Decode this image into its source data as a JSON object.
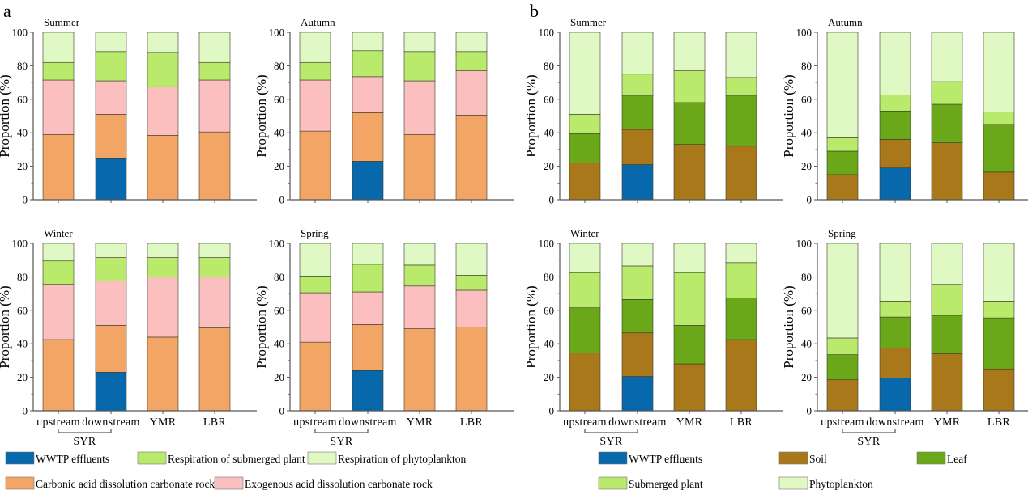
{
  "figure": {
    "panel_labels": [
      "a",
      "b"
    ],
    "group_label": "SYR"
  },
  "legends": {
    "a": [
      {
        "label": "WWTP effluents",
        "color": "#0868ac"
      },
      {
        "label": "Respiration of submerged plant",
        "color": "#b9ea6b"
      },
      {
        "label": "Respiration of phytoplankton",
        "color": "#e0f8c4"
      },
      {
        "label": "Carbonic acid dissolution carbonate rock",
        "color": "#f2a565"
      },
      {
        "label": "Exogenous acid dissolution carbonate rock",
        "color": "#fbbfc0"
      }
    ],
    "b": [
      {
        "label": "WWTP effluents",
        "color": "#0868ac"
      },
      {
        "label": "Soil",
        "color": "#a8781a"
      },
      {
        "label": "Leaf",
        "color": "#6aa81a"
      },
      {
        "label": "Submerged plant",
        "color": "#b9ea6b"
      },
      {
        "label": "Phytoplankton",
        "color": "#e0f8c4"
      }
    ]
  },
  "chart_data": [
    {
      "panel": "a",
      "title": "Summer",
      "type": "bar",
      "stacked": true,
      "ylabel": "Proportion (%)",
      "ylim": [
        0,
        100
      ],
      "yticks": [
        "0",
        "20",
        "40",
        "60",
        "80",
        "100"
      ],
      "categories": [
        "upstream",
        "downstream",
        "YMR",
        "LBR"
      ],
      "series": [
        {
          "name": "WWTP effluents",
          "color": "#0868ac",
          "values": [
            0,
            24.5,
            0,
            0
          ]
        },
        {
          "name": "Carbonic acid dissolution carbonate rock",
          "color": "#f2a565",
          "values": [
            39,
            26.5,
            38.5,
            40.5
          ]
        },
        {
          "name": "Exogenous acid dissolution carbonate rock",
          "color": "#fbbfc0",
          "values": [
            32.5,
            20,
            29,
            31
          ]
        },
        {
          "name": "Respiration of submerged plant",
          "color": "#b9ea6b",
          "values": [
            10.5,
            17.5,
            20.5,
            10.5
          ]
        },
        {
          "name": "Respiration of phytoplankton",
          "color": "#e0f8c4",
          "values": [
            18,
            11.5,
            12,
            18
          ]
        }
      ]
    },
    {
      "panel": "a",
      "title": "Autumn",
      "type": "bar",
      "stacked": true,
      "ylabel": "Proportion (%)",
      "ylim": [
        0,
        100
      ],
      "yticks": [
        "0",
        "20",
        "40",
        "60",
        "80",
        "100"
      ],
      "categories": [
        "upstream",
        "downstream",
        "YMR",
        "LBR"
      ],
      "series": [
        {
          "name": "WWTP effluents",
          "color": "#0868ac",
          "values": [
            0,
            23,
            0,
            0
          ]
        },
        {
          "name": "Carbonic acid dissolution carbonate rock",
          "color": "#f2a565",
          "values": [
            41,
            29,
            39,
            50.5
          ]
        },
        {
          "name": "Exogenous acid dissolution carbonate rock",
          "color": "#fbbfc0",
          "values": [
            30.5,
            21.5,
            32,
            26.5
          ]
        },
        {
          "name": "Respiration of submerged plant",
          "color": "#b9ea6b",
          "values": [
            10.5,
            15.5,
            17.5,
            11.5
          ]
        },
        {
          "name": "Respiration of phytoplankton",
          "color": "#e0f8c4",
          "values": [
            18,
            11,
            11.5,
            11.5
          ]
        }
      ]
    },
    {
      "panel": "a",
      "title": "Winter",
      "type": "bar",
      "stacked": true,
      "ylabel": "Proportion (%)",
      "ylim": [
        0,
        100
      ],
      "yticks": [
        "0",
        "20",
        "40",
        "60",
        "80",
        "100"
      ],
      "categories": [
        "upstream",
        "downstream",
        "YMR",
        "LBR"
      ],
      "series": [
        {
          "name": "WWTP effluents",
          "color": "#0868ac",
          "values": [
            0,
            23,
            0,
            0
          ]
        },
        {
          "name": "Carbonic acid dissolution carbonate rock",
          "color": "#f2a565",
          "values": [
            42.5,
            28,
            44,
            49.5
          ]
        },
        {
          "name": "Exogenous acid dissolution carbonate rock",
          "color": "#fbbfc0",
          "values": [
            33,
            26.5,
            36,
            30.5
          ]
        },
        {
          "name": "Respiration of submerged plant",
          "color": "#b9ea6b",
          "values": [
            14,
            14,
            11.5,
            11.5
          ]
        },
        {
          "name": "Respiration of phytoplankton",
          "color": "#e0f8c4",
          "values": [
            10.5,
            8.5,
            8.5,
            8.5
          ]
        }
      ]
    },
    {
      "panel": "a",
      "title": "Spring",
      "type": "bar",
      "stacked": true,
      "ylabel": "Proportion (%)",
      "ylim": [
        0,
        100
      ],
      "yticks": [
        "0",
        "20",
        "40",
        "60",
        "80",
        "100"
      ],
      "categories": [
        "upstream",
        "downstream",
        "YMR",
        "LBR"
      ],
      "series": [
        {
          "name": "WWTP effluents",
          "color": "#0868ac",
          "values": [
            0,
            24,
            0,
            0
          ]
        },
        {
          "name": "Carbonic acid dissolution carbonate rock",
          "color": "#f2a565",
          "values": [
            41,
            27.5,
            49,
            50
          ]
        },
        {
          "name": "Exogenous acid dissolution carbonate rock",
          "color": "#fbbfc0",
          "values": [
            29.5,
            19.5,
            25.5,
            22
          ]
        },
        {
          "name": "Respiration of submerged plant",
          "color": "#b9ea6b",
          "values": [
            10,
            16.5,
            12.5,
            9
          ]
        },
        {
          "name": "Respiration of phytoplankton",
          "color": "#e0f8c4",
          "values": [
            19.5,
            12.5,
            13,
            19
          ]
        }
      ]
    },
    {
      "panel": "b",
      "title": "Summer",
      "type": "bar",
      "stacked": true,
      "ylabel": "Proportion (%)",
      "ylim": [
        0,
        100
      ],
      "yticks": [
        "0",
        "20",
        "40",
        "60",
        "80",
        "100"
      ],
      "categories": [
        "upstream",
        "downstream",
        "YMR",
        "LBR"
      ],
      "series": [
        {
          "name": "WWTP effluents",
          "color": "#0868ac",
          "values": [
            0,
            21,
            0,
            0
          ]
        },
        {
          "name": "Soil",
          "color": "#a8781a",
          "values": [
            22,
            21,
            33,
            32
          ]
        },
        {
          "name": "Leaf",
          "color": "#6aa81a",
          "values": [
            17.5,
            20,
            25,
            30
          ]
        },
        {
          "name": "Submerged plant",
          "color": "#b9ea6b",
          "values": [
            11.5,
            13,
            19,
            11
          ]
        },
        {
          "name": "Phytoplankton",
          "color": "#e0f8c4",
          "values": [
            49,
            25,
            23,
            27
          ]
        }
      ]
    },
    {
      "panel": "b",
      "title": "Autumn",
      "type": "bar",
      "stacked": true,
      "ylabel": "Proportion (%)",
      "ylim": [
        0,
        100
      ],
      "yticks": [
        "0",
        "20",
        "40",
        "60",
        "80",
        "100"
      ],
      "categories": [
        "upstream",
        "downstream",
        "YMR",
        "LBR"
      ],
      "series": [
        {
          "name": "WWTP effluents",
          "color": "#0868ac",
          "values": [
            0,
            19,
            0,
            0
          ]
        },
        {
          "name": "Soil",
          "color": "#a8781a",
          "values": [
            15,
            17,
            34,
            16.5
          ]
        },
        {
          "name": "Leaf",
          "color": "#6aa81a",
          "values": [
            14,
            17,
            23,
            28.5
          ]
        },
        {
          "name": "Submerged plant",
          "color": "#b9ea6b",
          "values": [
            8,
            9.5,
            13.5,
            7.5
          ]
        },
        {
          "name": "Phytoplankton",
          "color": "#e0f8c4",
          "values": [
            63,
            37.5,
            29.5,
            47.5
          ]
        }
      ]
    },
    {
      "panel": "b",
      "title": "Winter",
      "type": "bar",
      "stacked": true,
      "ylabel": "Proportion (%)",
      "ylim": [
        0,
        100
      ],
      "yticks": [
        "0",
        "20",
        "40",
        "60",
        "80",
        "100"
      ],
      "categories": [
        "upstream",
        "downstream",
        "YMR",
        "LBR"
      ],
      "series": [
        {
          "name": "WWTP effluents",
          "color": "#0868ac",
          "values": [
            0,
            20.5,
            0,
            0
          ]
        },
        {
          "name": "Soil",
          "color": "#a8781a",
          "values": [
            34.5,
            26,
            28,
            42.5
          ]
        },
        {
          "name": "Leaf",
          "color": "#6aa81a",
          "values": [
            27,
            20,
            23,
            25
          ]
        },
        {
          "name": "Submerged plant",
          "color": "#b9ea6b",
          "values": [
            21,
            20,
            31.5,
            21
          ]
        },
        {
          "name": "Phytoplankton",
          "color": "#e0f8c4",
          "values": [
            17.5,
            13.5,
            17.5,
            11.5
          ]
        }
      ]
    },
    {
      "panel": "b",
      "title": "Spring",
      "type": "bar",
      "stacked": true,
      "ylabel": "Proportion (%)",
      "ylim": [
        0,
        100
      ],
      "yticks": [
        "0",
        "20",
        "40",
        "60",
        "80",
        "100"
      ],
      "categories": [
        "upstream",
        "downstream",
        "YMR",
        "LBR"
      ],
      "series": [
        {
          "name": "WWTP effluents",
          "color": "#0868ac",
          "values": [
            0,
            19.5,
            0,
            0
          ]
        },
        {
          "name": "Soil",
          "color": "#a8781a",
          "values": [
            18.5,
            18,
            34,
            25
          ]
        },
        {
          "name": "Leaf",
          "color": "#6aa81a",
          "values": [
            15,
            18.5,
            23,
            30.5
          ]
        },
        {
          "name": "Submerged plant",
          "color": "#b9ea6b",
          "values": [
            10,
            9.5,
            18.5,
            10
          ]
        },
        {
          "name": "Phytoplankton",
          "color": "#e0f8c4",
          "values": [
            56.5,
            34.5,
            24.5,
            34.5
          ]
        }
      ]
    }
  ]
}
